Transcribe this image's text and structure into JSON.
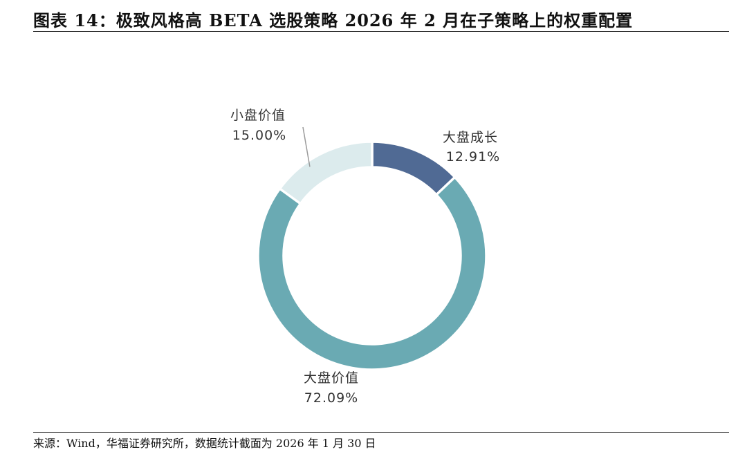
{
  "header": {
    "title": "图表 14：极致风格高 BETA 选股策略 2026 年 2 月在子策略上的权重配置"
  },
  "chart_data": {
    "type": "pie",
    "variant": "donut",
    "start_angle_deg": 0,
    "direction": "clockwise",
    "slices": [
      {
        "name": "大盘成长",
        "value": 12.91,
        "label": "12.91%",
        "color": "#506a94"
      },
      {
        "name": "大盘价值",
        "value": 72.09,
        "label": "72.09%",
        "color": "#6aaab3"
      },
      {
        "name": "小盘价值",
        "value": 15.0,
        "label": "15.00%",
        "color": "#dcebed"
      }
    ]
  },
  "footer": {
    "source": "来源：Wind，华福证券研究所，数据统计截面为 2026 年 1 月 30 日"
  }
}
